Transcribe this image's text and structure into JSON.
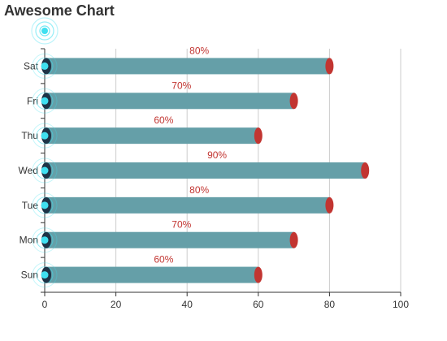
{
  "chart_data": {
    "type": "bar",
    "orientation": "horizontal",
    "title": "Awesome Chart",
    "categories": [
      "Sun",
      "Mon",
      "Tue",
      "Wed",
      "Thu",
      "Fri",
      "Sat"
    ],
    "values": [
      60,
      70,
      80,
      90,
      60,
      70,
      80
    ],
    "value_labels": [
      "60%",
      "70%",
      "80%",
      "90%",
      "60%",
      "70%",
      "80%"
    ],
    "xlim": [
      0,
      100
    ],
    "x_ticks": [
      0,
      20,
      40,
      60,
      80,
      100
    ],
    "grid": true,
    "colors": {
      "bar": "#659fa8",
      "bar_cap": "#c23531",
      "label": "#c23531",
      "axis": "#333333",
      "grid": "#cccccc",
      "ring": "#40e0f0"
    }
  }
}
